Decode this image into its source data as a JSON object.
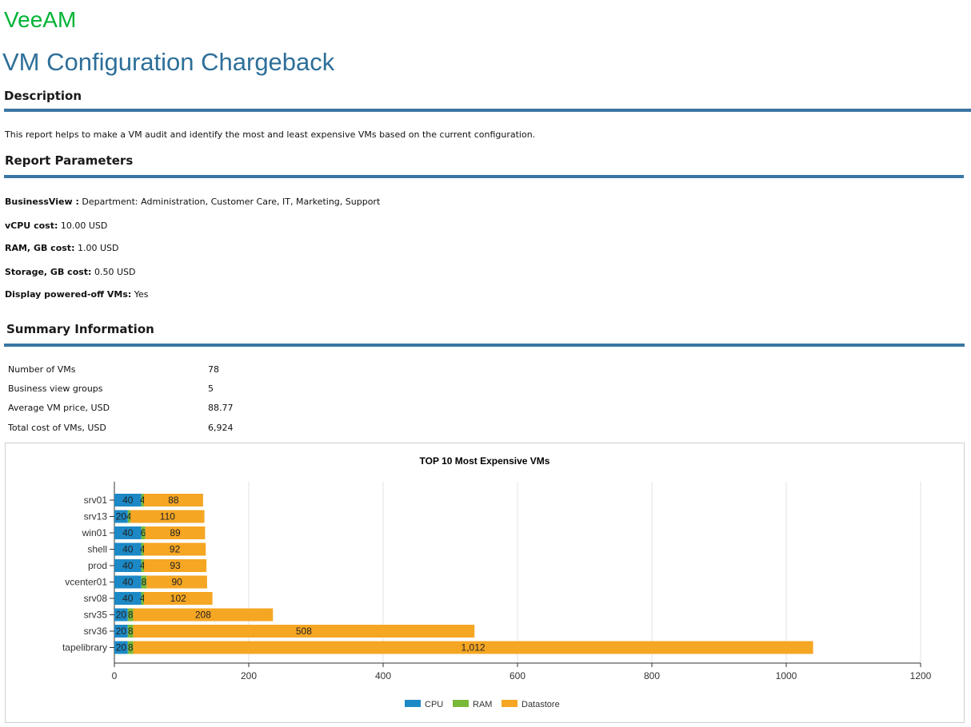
{
  "brand": {
    "logo_text": "VeeAM",
    "logo_color": "#00b336"
  },
  "report": {
    "title": "VM Configuration Chargeback"
  },
  "description": {
    "heading": "Description",
    "text": "This report helps to make a VM audit and identify the most and least expensive VMs based on the current configuration."
  },
  "parameters": {
    "heading": "Report Parameters",
    "items": [
      {
        "label": "BusinessView :",
        "value": " Department: Administration, Customer Care, IT, Marketing, Support"
      },
      {
        "label": "vCPU cost:",
        "value": " 10.00 USD"
      },
      {
        "label": "RAM, GB cost:",
        "value": " 1.00 USD"
      },
      {
        "label": "Storage, GB cost:",
        "value": " 0.50 USD"
      },
      {
        "label": "Display powered-off VMs:",
        "value": " Yes"
      }
    ]
  },
  "summary": {
    "heading": "Summary Information",
    "rows": [
      {
        "label": "Number of VMs",
        "value": "78"
      },
      {
        "label": "Business view groups",
        "value": "5"
      },
      {
        "label": "Average VM price, USD",
        "value": "88.77"
      },
      {
        "label": "Total cost of VMs, USD",
        "value": "6,924"
      }
    ]
  },
  "colors": {
    "accent": "#2e6f99",
    "rule": "#3a76a3",
    "cpu": "#1c89c6",
    "ram": "#78b93a",
    "datastore": "#f5a623"
  },
  "chart_data": {
    "type": "bar",
    "orientation": "horizontal",
    "stacked": true,
    "title": "TOP 10 Most Expensive VMs",
    "categories": [
      "srv01",
      "srv13",
      "win01",
      "shell",
      "prod",
      "vcenter01",
      "srv08",
      "srv35",
      "srv36",
      "tapelibrary"
    ],
    "series": [
      {
        "name": "CPU",
        "color": "#1c89c6",
        "values": [
          40,
          20,
          40,
          40,
          40,
          40,
          40,
          20,
          20,
          20
        ],
        "labels": [
          "40",
          "20",
          "40",
          "40",
          "40",
          "40",
          "40",
          "20",
          "20",
          "20"
        ]
      },
      {
        "name": "RAM",
        "color": "#78b93a",
        "values": [
          4,
          4,
          6,
          4,
          4,
          8,
          4,
          8,
          8,
          8
        ],
        "labels": [
          "4",
          "4",
          "6",
          "4",
          "4",
          "8",
          "4",
          "8",
          "8",
          "8"
        ]
      },
      {
        "name": "Datastore",
        "color": "#f5a623",
        "values": [
          88,
          110,
          89,
          92,
          93,
          90,
          102,
          208,
          508,
          1012
        ],
        "labels": [
          "88",
          "110",
          "89",
          "92",
          "93",
          "90",
          "102",
          "208",
          "508",
          "1,012"
        ]
      }
    ],
    "xlim": [
      0,
      1200
    ],
    "xticks": [
      0,
      200,
      400,
      600,
      800,
      1000,
      1200
    ],
    "grid": true,
    "legend_position": "bottom-center"
  }
}
